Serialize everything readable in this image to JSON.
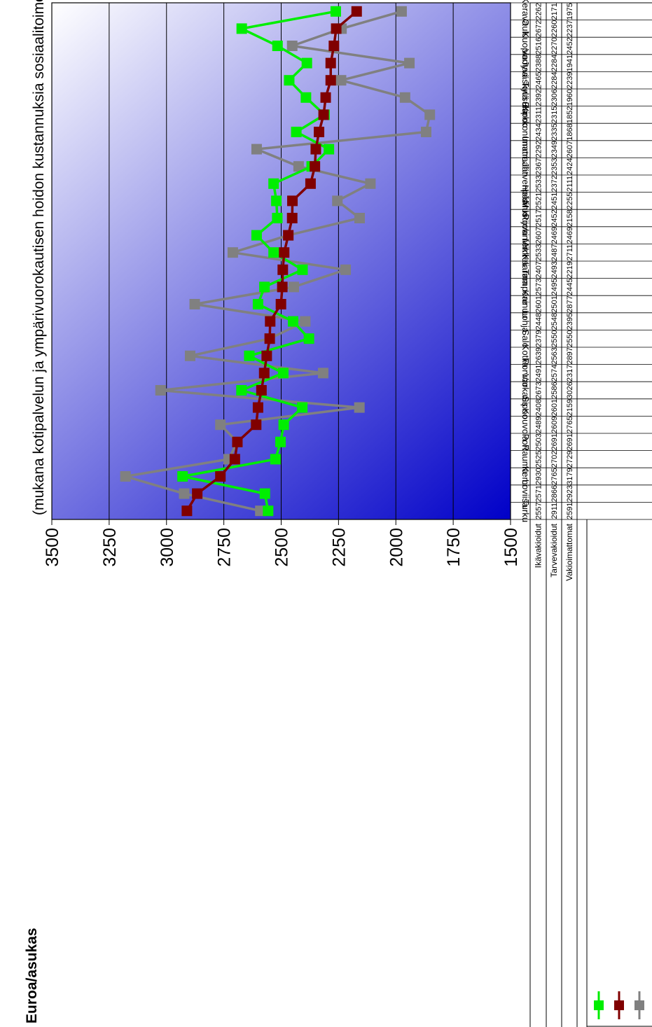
{
  "chart_data": {
    "type": "line",
    "ylabel": "Euroa/asukas",
    "subtitle": "(mukana kotipalvelun ja ympärivuorokautisen hoidon kustannuksia sosiaalitoimesta)",
    "ylim": [
      1500,
      3500
    ],
    "yticks": [
      "3500",
      "3250",
      "3000",
      "2750",
      "2500",
      "2250",
      "2000",
      "1750",
      "1500"
    ],
    "grid": true,
    "orientation": "rotated-90",
    "categories": [
      "Turku",
      "Loviisa",
      "Kemi",
      "Rauma",
      "Pori",
      "Kouvola",
      "Sipoo",
      "Varkaus",
      "Porvoo",
      "Kotka",
      "Salo",
      "Lohja",
      "Kainuu",
      "Tampere",
      "Kaarina",
      "Mikkeli",
      "Rovaniemi",
      "Mustijoki",
      "Helsinki",
      "Järvenpää",
      "Lahti",
      "Imatra",
      "Kirkkonummi",
      "Espoo",
      "Tuusula",
      "Jyväskylä",
      "Vantaa",
      "Kuopio",
      "Oulu",
      "Kerava"
    ],
    "series": [
      {
        "name": "Ikävakioidut",
        "color": "#00ee00",
        "marker": "square",
        "values": [
          2557,
          2571,
          2930,
          2525,
          2503,
          2489,
          2408,
          2673,
          2491,
          2639,
          2379,
          2448,
          2601,
          2573,
          2407,
          2533,
          2607,
          2517,
          2521,
          2533,
          2367,
          2292,
          2434,
          2311,
          2392,
          2465,
          2388,
          2516,
          2672,
          2262
        ]
      },
      {
        "name": "Tarvevakioidut",
        "color": "#800000",
        "marker": "square",
        "values": [
          2911,
          2866,
          2765,
          2702,
          2691,
          2609,
          2601,
          2586,
          2574,
          2563,
          2550,
          2548,
          2501,
          2495,
          2493,
          2487,
          2469,
          2452,
          2451,
          2372,
          2353,
          2349,
          2335,
          2315,
          2306,
          2284,
          2284,
          2270,
          2260,
          2171
        ]
      },
      {
        "name": "Vakioimattomat",
        "color": "#808080",
        "marker": "square",
        "values": [
          2591,
          2923,
          3179,
          2729,
          2691,
          2765,
          2159,
          3026,
          2317,
          2897,
          2550,
          2395,
          2877,
          2445,
          2219,
          2711,
          2469,
          2158,
          2255,
          2111,
          2424,
          2607,
          1868,
          1852,
          1960,
          2239,
          1941,
          2452,
          2237,
          1975
        ]
      }
    ]
  }
}
